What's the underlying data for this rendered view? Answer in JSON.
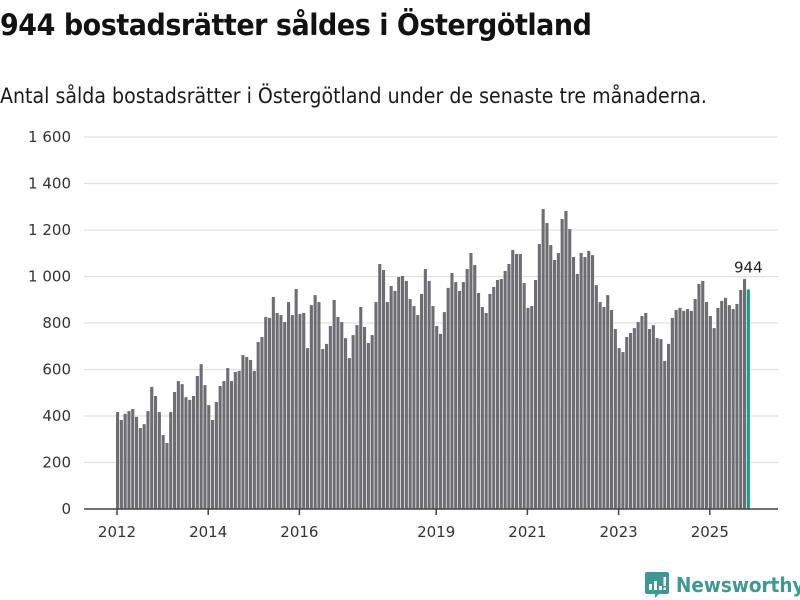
{
  "header": {
    "title": "944 bostadsrätter såldes i Östergötland",
    "subtitle": "Antal sålda bostadsrätter i Östergötland under de senaste tre månaderna."
  },
  "footer": {
    "brand": "Newsworthy",
    "logo_icon": "bar-chart-speech-bubble-icon"
  },
  "colors": {
    "bar": "#6d6d72",
    "highlight": "#1a9a8a",
    "grid": "#e0e0e0",
    "axis": "#444444",
    "brand": "#3d9a92"
  },
  "chart_data": {
    "type": "bar",
    "title": "944 bostadsrätter såldes i Östergötland",
    "subtitle": "Antal sålda bostadsrätter i Östergötland under de senaste tre månaderna.",
    "xlabel": "",
    "ylabel": "",
    "ylim": [
      0,
      1600
    ],
    "yticks": [
      0,
      200,
      400,
      600,
      800,
      1000,
      1200,
      1400,
      1600
    ],
    "ytick_labels": [
      "0",
      "200",
      "400",
      "600",
      "800",
      "1 000",
      "1 200",
      "1 400",
      "1 600"
    ],
    "grid": true,
    "start_period": "2012-01",
    "frequency": "monthly",
    "xticks": [
      {
        "label": "2012",
        "index": 0
      },
      {
        "label": "2014",
        "index": 24
      },
      {
        "label": "2016",
        "index": 48
      },
      {
        "label": "2019",
        "index": 84
      },
      {
        "label": "2021",
        "index": 108
      },
      {
        "label": "2023",
        "index": 132
      },
      {
        "label": "2025",
        "index": 156
      }
    ],
    "values": [
      417,
      383,
      409,
      421,
      430,
      396,
      348,
      365,
      421,
      525,
      486,
      417,
      318,
      284,
      417,
      503,
      550,
      537,
      481,
      469,
      486,
      572,
      623,
      533,
      447,
      383,
      460,
      529,
      550,
      606,
      550,
      589,
      594,
      662,
      654,
      641,
      594,
      718,
      740,
      826,
      822,
      912,
      843,
      834,
      804,
      890,
      834,
      946,
      839,
      843,
      692,
      877,
      920,
      890,
      688,
      710,
      787,
      899,
      826,
      804,
      735,
      649,
      748,
      791,
      869,
      783,
      714,
      748,
      890,
      1054,
      1028,
      890,
      959,
      938,
      998,
      1002,
      981,
      903,
      873,
      834,
      925,
      1032,
      981,
      873,
      787,
      753,
      847,
      951,
      1015,
      976,
      938,
      976,
      1032,
      1101,
      1049,
      929,
      869,
      843,
      925,
      955,
      985,
      989,
      1024,
      1054,
      1114,
      1097,
      1097,
      972,
      865,
      873,
      985,
      1140,
      1290,
      1230,
      1135,
      1071,
      1101,
      1247,
      1282,
      1204,
      1084,
      1011,
      1101,
      1084,
      1110,
      1092,
      963,
      890,
      869,
      920,
      856,
      774,
      692,
      675,
      740,
      757,
      778,
      804,
      830,
      843,
      774,
      791,
      735,
      731,
      637,
      710,
      822,
      856,
      865,
      852,
      860,
      852,
      903,
      968,
      981,
      890,
      830,
      778,
      865,
      895,
      908,
      877,
      860,
      882,
      942,
      989,
      944
    ],
    "highlight_last": true,
    "annotation": {
      "text": "944",
      "target": "last"
    }
  }
}
